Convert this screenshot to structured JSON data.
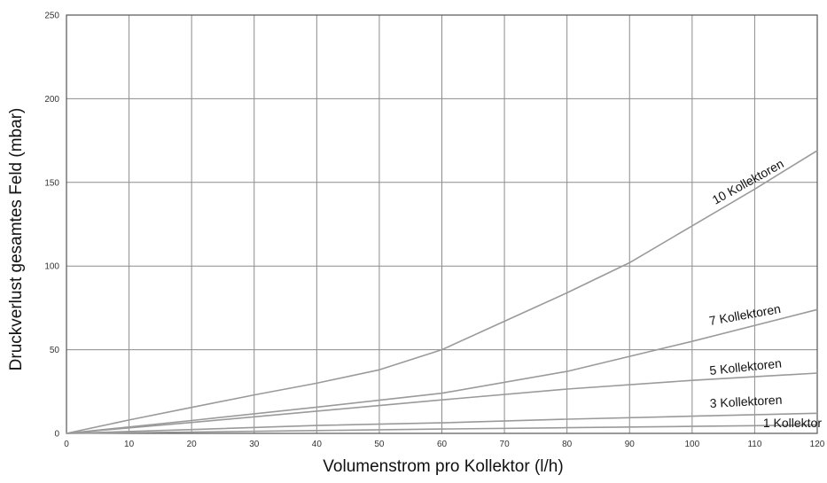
{
  "chart_data": {
    "type": "line",
    "xlabel": "Volumenstrom pro Kollektor (l/h)",
    "ylabel": "Druckverlust gesamtes Feld (mbar)",
    "xlim": [
      0,
      120
    ],
    "ylim": [
      0,
      250
    ],
    "xticks": [
      0,
      10,
      20,
      30,
      40,
      50,
      60,
      70,
      80,
      90,
      100,
      110,
      120
    ],
    "yticks": [
      0,
      50,
      100,
      150,
      200,
      250
    ],
    "grid": true,
    "colors": {
      "line": "#9a9a9a",
      "grid": "#8c8c8c",
      "axis": "#555555"
    },
    "series": [
      {
        "name": "1 Kollektor",
        "x": [
          0,
          20,
          40,
          60,
          80,
          100,
          120
        ],
        "y": [
          0,
          0.8,
          1.7,
          2.6,
          3.4,
          4.2,
          5
        ]
      },
      {
        "name": "3 Kollektoren",
        "x": [
          0,
          20,
          40,
          60,
          80,
          100,
          120
        ],
        "y": [
          0,
          2.3,
          4.7,
          6.3,
          8.5,
          10.3,
          12
        ]
      },
      {
        "name": "5 Kollektoren",
        "x": [
          0,
          20,
          40,
          60,
          80,
          100,
          120
        ],
        "y": [
          0,
          6.5,
          13.3,
          20,
          26.5,
          31.7,
          36
        ]
      },
      {
        "name": "7 Kollektoren",
        "x": [
          0,
          20,
          40,
          60,
          80,
          100,
          120
        ],
        "y": [
          0,
          7.7,
          15.7,
          24,
          37,
          55,
          74
        ]
      },
      {
        "name": "10 Kollektoren",
        "x": [
          0,
          10,
          20,
          30,
          40,
          50,
          60,
          70,
          80,
          90,
          100,
          110,
          120
        ],
        "y": [
          0,
          8,
          15.5,
          23,
          30,
          38,
          50,
          67,
          84,
          102,
          124,
          146,
          169
        ]
      }
    ]
  }
}
